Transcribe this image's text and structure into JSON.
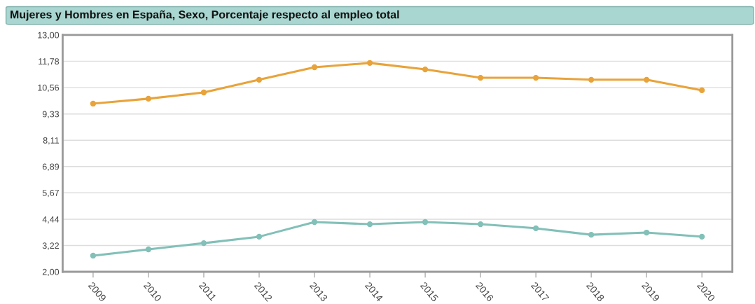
{
  "chart_data": {
    "type": "line",
    "title": "Mujeres y Hombres en España, Sexo, Porcentaje respecto al empleo total",
    "categories": [
      "2009",
      "2010",
      "2011",
      "2012",
      "2013",
      "2014",
      "2015",
      "2016",
      "2017",
      "2018",
      "2019",
      "2020"
    ],
    "series": [
      {
        "color": "#e8a33a",
        "values": [
          9.81,
          10.04,
          10.33,
          10.92,
          11.5,
          11.7,
          11.4,
          11.01,
          11.01,
          10.92,
          10.92,
          10.43
        ]
      },
      {
        "color": "#82c0b8",
        "values": [
          2.75,
          3.04,
          3.33,
          3.63,
          4.31,
          4.21,
          4.31,
          4.21,
          4.02,
          3.72,
          3.82,
          3.63
        ]
      }
    ],
    "ylim": [
      2.0,
      13.0
    ],
    "yticks": [
      {
        "value": 2.0,
        "label": "2,00"
      },
      {
        "value": 3.22,
        "label": "3,22"
      },
      {
        "value": 4.44,
        "label": "4,44"
      },
      {
        "value": 5.67,
        "label": "5,67"
      },
      {
        "value": 6.89,
        "label": "6,89"
      },
      {
        "value": 8.11,
        "label": "8,11"
      },
      {
        "value": 9.33,
        "label": "9,33"
      },
      {
        "value": 10.56,
        "label": "10,56"
      },
      {
        "value": 11.78,
        "label": "11,78"
      },
      {
        "value": 13.0,
        "label": "13,00"
      }
    ],
    "grid": "y",
    "marker": "circle",
    "line_style": "solid",
    "legend": false
  }
}
